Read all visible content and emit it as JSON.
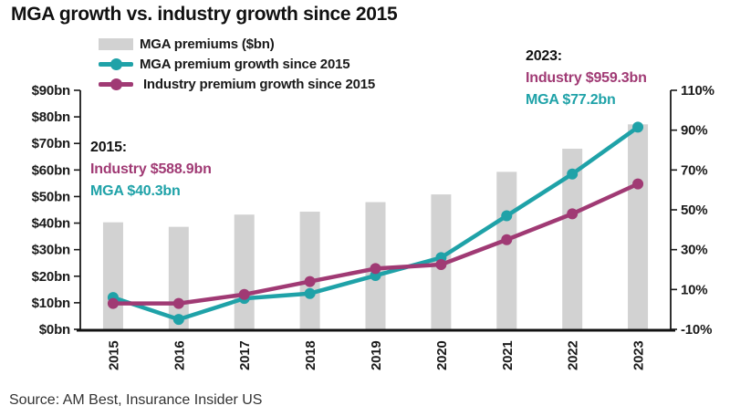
{
  "title": "MGA growth vs. industry growth since 2015",
  "source": "Source: AM Best, Insurance Insider US",
  "colors": {
    "bar": "#D2D2D2",
    "mga": "#1FA2A8",
    "industry": "#A03A74",
    "text": "#1A1A1A"
  },
  "legend": [
    {
      "type": "bar",
      "color_key": "bar",
      "label": "MGA premiums ($bn)"
    },
    {
      "type": "line",
      "color_key": "mga",
      "label": "MGA premium growth since 2015"
    },
    {
      "type": "line",
      "color_key": "industry",
      "label": " Industry premium growth since 2015"
    }
  ],
  "annotations": {
    "start": {
      "year": "2015:",
      "industry": "Industry $588.9bn",
      "mga": "MGA $40.3bn"
    },
    "end": {
      "year": "2023:",
      "industry": "Industry $959.3bn",
      "mga": "MGA $77.2bn"
    }
  },
  "chart_data": {
    "type": "bar+line",
    "title": "MGA growth vs. industry growth since 2015",
    "categories": [
      "2015",
      "2016",
      "2017",
      "2018",
      "2019",
      "2020",
      "2021",
      "2022",
      "2023"
    ],
    "series": [
      {
        "name": "MGA premiums ($bn)",
        "type": "bar",
        "axis": "left",
        "color_key": "bar",
        "values": [
          40.3,
          38.6,
          43.2,
          44.3,
          47.9,
          50.8,
          59.3,
          68.0,
          77.2
        ]
      },
      {
        "name": "MGA premium growth since 2015",
        "type": "line",
        "axis": "right",
        "color_key": "mga",
        "values": [
          6,
          -5,
          5.5,
          8,
          17,
          26,
          47,
          68,
          91.5
        ]
      },
      {
        "name": "Industry premium growth since 2015",
        "type": "line",
        "axis": "right",
        "color_key": "industry",
        "values": [
          3,
          3,
          7.5,
          14,
          20.5,
          22.5,
          35,
          48,
          63
        ]
      }
    ],
    "left_axis": {
      "min": 0,
      "max": 90,
      "tick_step": 10,
      "tick_labels": [
        "$0bn",
        "$10bn",
        "$20bn",
        "$30bn",
        "$40bn",
        "$50bn",
        "$60bn",
        "$70bn",
        "$80bn",
        "$90bn"
      ]
    },
    "right_axis": {
      "min": -10,
      "max": 110,
      "tick_step": 20,
      "tick_labels": [
        "-10%",
        "10%",
        "30%",
        "50%",
        "70%",
        "90%",
        "110%"
      ]
    },
    "grid": false,
    "legend_position": "top-left",
    "key_points": {
      "2015": {
        "industry_premium": "$588.9bn",
        "mga_premium": "$40.3bn"
      },
      "2023": {
        "industry_premium": "$959.3bn",
        "mga_premium": "$77.2bn"
      }
    }
  }
}
